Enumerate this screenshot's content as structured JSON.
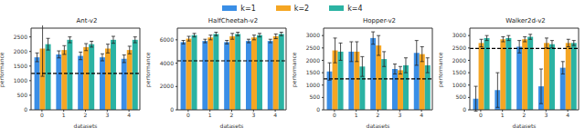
{
  "chart_data": [
    {
      "type": "bar",
      "title": "Ant-v2",
      "x_label": "datasets",
      "y_label": "performance",
      "legend": "top",
      "categories": [
        "0",
        "1",
        "2",
        "3",
        "4"
      ],
      "ylim": [
        0,
        2800
      ],
      "yticks": [
        0,
        500,
        1000,
        1500,
        2000,
        2500
      ],
      "reference_line": 1250,
      "series": [
        {
          "name": "k=1",
          "color": "#3a8ee6",
          "values": [
            1800,
            1900,
            1850,
            1800,
            1750
          ],
          "errors": [
            150,
            120,
            130,
            120,
            130
          ]
        },
        {
          "name": "k=2",
          "color": "#f5a623",
          "values": [
            2100,
            2050,
            2150,
            2100,
            2050
          ],
          "errors": [
            950,
            150,
            120,
            150,
            130
          ]
        },
        {
          "name": "k=4",
          "color": "#2bb3a3",
          "values": [
            2250,
            2400,
            2250,
            2400,
            2400
          ],
          "errors": [
            200,
            100,
            100,
            120,
            100
          ]
        }
      ]
    },
    {
      "type": "bar",
      "title": "HalfCheetah-v2",
      "x_label": "datasets",
      "y_label": "performance",
      "legend": "top",
      "categories": [
        "0",
        "1",
        "2",
        "3",
        "4"
      ],
      "ylim": [
        0,
        7000
      ],
      "yticks": [
        0,
        2000,
        4000,
        6000
      ],
      "reference_line": 4200,
      "series": [
        {
          "name": "k=1",
          "color": "#3a8ee6",
          "values": [
            5800,
            5900,
            5800,
            5900,
            5900
          ],
          "errors": [
            150,
            150,
            150,
            150,
            150
          ]
        },
        {
          "name": "k=2",
          "color": "#f5a623",
          "values": [
            6100,
            6200,
            6300,
            6200,
            6300
          ],
          "errors": [
            200,
            200,
            250,
            200,
            200
          ]
        },
        {
          "name": "k=4",
          "color": "#2bb3a3",
          "values": [
            6400,
            6500,
            6500,
            6400,
            6500
          ],
          "errors": [
            150,
            150,
            150,
            150,
            150
          ]
        }
      ]
    },
    {
      "type": "bar",
      "title": "Hopper-v2",
      "x_label": "datasets",
      "y_label": "performance",
      "legend": "top",
      "categories": [
        "0",
        "1",
        "2",
        "3",
        "4"
      ],
      "ylim": [
        0,
        3300
      ],
      "yticks": [
        0,
        500,
        1000,
        1500,
        2000,
        2500,
        3000
      ],
      "reference_line": 1250,
      "series": [
        {
          "name": "k=1",
          "color": "#3a8ee6",
          "values": [
            1550,
            2350,
            2900,
            1650,
            2300
          ],
          "errors": [
            350,
            400,
            250,
            200,
            500
          ]
        },
        {
          "name": "k=2",
          "color": "#f5a623",
          "values": [
            2400,
            2350,
            2600,
            1600,
            2250
          ],
          "errors": [
            500,
            400,
            400,
            150,
            300
          ]
        },
        {
          "name": "k=4",
          "color": "#2bb3a3",
          "values": [
            2350,
            1750,
            2050,
            1800,
            1800
          ],
          "errors": [
            350,
            400,
            300,
            300,
            300
          ]
        }
      ]
    },
    {
      "type": "bar",
      "title": "Walker2d-v2",
      "x_label": "datasets",
      "y_label": "performance",
      "legend": "top",
      "categories": [
        "0",
        "1",
        "2",
        "3",
        "4"
      ],
      "ylim": [
        0,
        3300
      ],
      "yticks": [
        0,
        500,
        1000,
        1500,
        2000,
        2500,
        3000
      ],
      "reference_line": 2480,
      "series": [
        {
          "name": "k=1",
          "color": "#3a8ee6",
          "values": [
            450,
            800,
            2550,
            950,
            1700
          ],
          "errors": [
            500,
            700,
            250,
            700,
            250
          ]
        },
        {
          "name": "k=2",
          "color": "#f5a623",
          "values": [
            2700,
            2850,
            2850,
            2700,
            2700
          ],
          "errors": [
            150,
            100,
            100,
            200,
            150
          ]
        },
        {
          "name": "k=4",
          "color": "#2bb3a3",
          "values": [
            2900,
            2900,
            2950,
            2650,
            2700
          ],
          "errors": [
            100,
            100,
            100,
            150,
            100
          ]
        }
      ]
    }
  ]
}
